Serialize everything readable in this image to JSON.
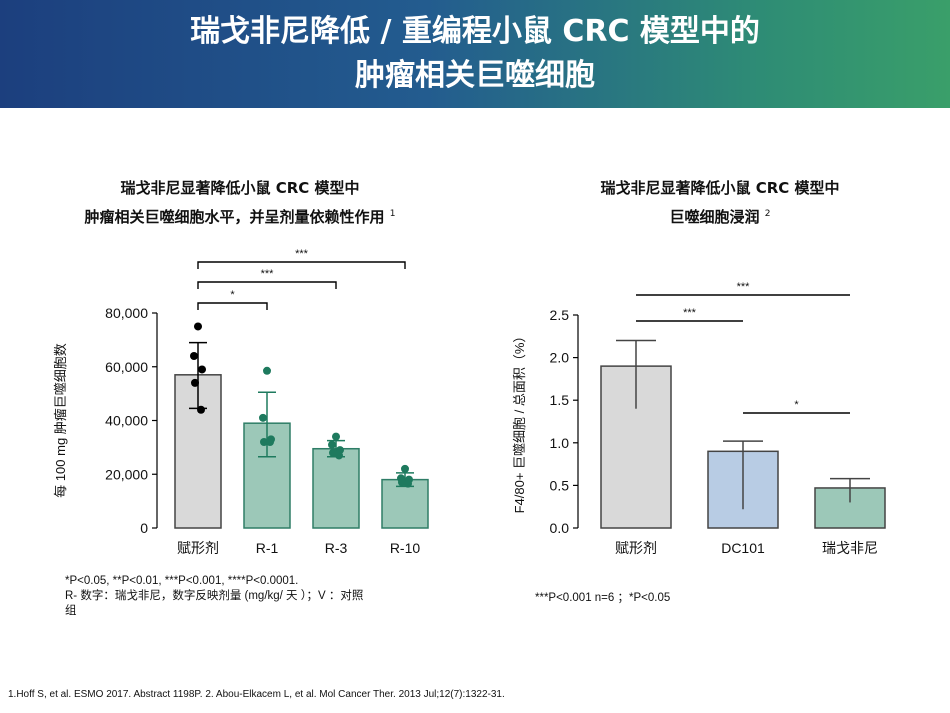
{
  "slide": {
    "title_line1": "瑞戈非尼降低 / 重编程小鼠 CRC 模型中的",
    "title_line2": "肿瘤相关巨噬细胞",
    "reference": "1.Hoff S, et al. ESMO 2017. Abstract 1198P. 2. Abou-Elkacem L, et al. Mol Cancer Ther. 2013 Jul;12(7):1322-31."
  },
  "left_panel": {
    "title_line1": "瑞戈非尼显著降低小鼠 CRC 模型中",
    "title_line2": "肿瘤相关巨噬细胞水平，并呈剂量依赖性作用",
    "title_sup": "1",
    "footnote_line1": "*P<0.05, **P<0.01, ***P<0.001, ****P<0.0001.",
    "footnote_line2": "R- 数字：瑞戈非尼，数字反映剂量 (mg/kg/ 天 ）；V ：对照",
    "footnote_line3": "组"
  },
  "right_panel": {
    "title_line1": "瑞戈非尼显著降低小鼠 CRC 模型中",
    "title_line2": "巨噬细胞浸润",
    "title_sup": "2",
    "footnote": "***P<0.001 n=6 ；*P<0.05"
  },
  "chart_data": [
    {
      "type": "bar",
      "title": "瑞戈非尼显著降低小鼠 CRC 模型中肿瘤相关巨噬细胞水平，并呈剂量依赖性作用",
      "categories": [
        "赋形剂",
        "R-1",
        "R-3",
        "R-10"
      ],
      "values": [
        57000,
        39000,
        29500,
        18000
      ],
      "error_upper": [
        69000,
        50500,
        32500,
        20500
      ],
      "error_lower": [
        44500,
        26500,
        26500,
        15500
      ],
      "points": [
        [
          75000,
          64000,
          59000,
          54000,
          44000
        ],
        [
          58500,
          41000,
          33000,
          32000,
          32000
        ],
        [
          34000,
          31000,
          29000,
          28000,
          27000
        ],
        [
          22000,
          18500,
          18000,
          17000,
          16500
        ]
      ],
      "bar_colors": [
        "#d9d9d9",
        "#9cc8b8",
        "#9cc8b8",
        "#9cc8b8"
      ],
      "point_colors": [
        "#000000",
        "#1e7a5e",
        "#1e7a5e",
        "#1e7a5e"
      ],
      "ylabel": "每 100 mg 肿瘤巨噬细胞数",
      "xlabel": "",
      "ylim": [
        0,
        80000
      ],
      "yticks": [
        0,
        20000,
        40000,
        60000,
        80000
      ],
      "ytick_labels": [
        "0",
        "20,000",
        "40,000",
        "60,000",
        "80,000"
      ],
      "significance": [
        {
          "from": 0,
          "to": 1,
          "label": "*"
        },
        {
          "from": 0,
          "to": 2,
          "label": "***"
        },
        {
          "from": 0,
          "to": 3,
          "label": "***"
        }
      ]
    },
    {
      "type": "bar",
      "title": "瑞戈非尼显著降低小鼠 CRC 模型中巨噬细胞浸润",
      "categories": [
        "赋形剂",
        "DC101",
        "瑞戈非尼"
      ],
      "values": [
        1.9,
        0.9,
        0.47
      ],
      "error_upper": [
        2.2,
        1.02,
        0.58
      ],
      "error_lower": [
        1.4,
        0.22,
        0.3
      ],
      "bar_colors": [
        "#d9d9d9",
        "#b8cce4",
        "#9cc8b8"
      ],
      "ylabel": "F4/80+ 巨噬细胞 / 总面积（%）",
      "xlabel": "",
      "ylim": [
        0,
        2.5
      ],
      "yticks": [
        0,
        0.5,
        1.0,
        1.5,
        2.0,
        2.5
      ],
      "ytick_labels": [
        "0.0",
        "0.5",
        "1.0",
        "1.5",
        "2.0",
        "2.5"
      ],
      "significance": [
        {
          "from": 0,
          "to": 1,
          "label": "***"
        },
        {
          "from": 0,
          "to": 2,
          "label": "***"
        },
        {
          "from": 1,
          "to": 2,
          "label": "*"
        }
      ]
    }
  ]
}
